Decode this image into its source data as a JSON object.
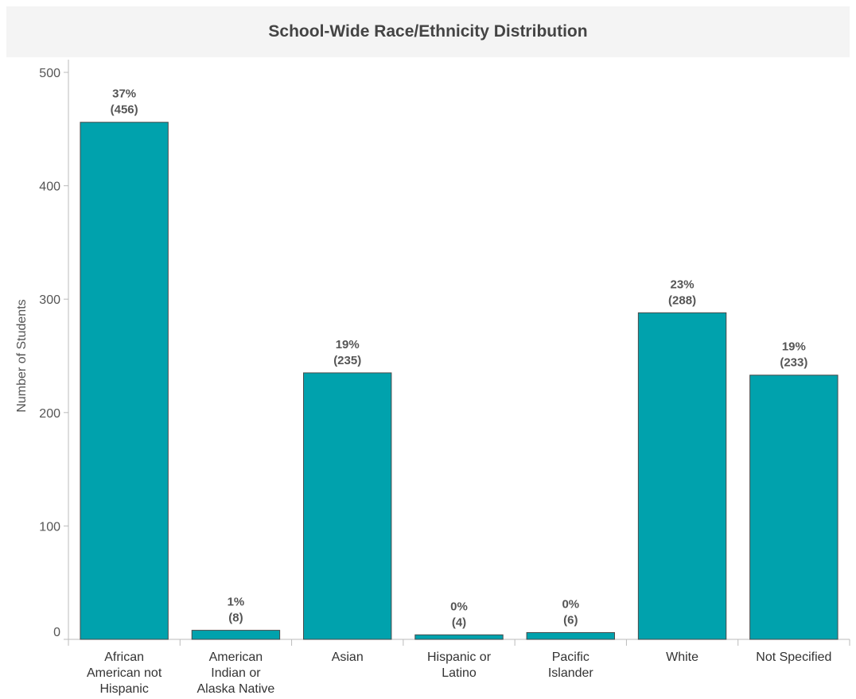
{
  "chart_data": {
    "type": "bar",
    "title": "School-Wide Race/Ethnicity Distribution",
    "xlabel": "",
    "ylabel": "Number of Students",
    "ylim": [
      0,
      500
    ],
    "yticks": [
      0,
      100,
      200,
      300,
      400,
      500
    ],
    "grid": false,
    "color": "#00a2ad",
    "categories": [
      [
        "African",
        "American not",
        "Hispanic"
      ],
      [
        "American",
        "Indian or",
        "Alaska Native"
      ],
      [
        "Asian"
      ],
      [
        "Hispanic or",
        "Latino"
      ],
      [
        "Pacific",
        "Islander"
      ],
      [
        "White"
      ],
      [
        "Not Specified"
      ]
    ],
    "values": [
      456,
      8,
      235,
      4,
      6,
      288,
      233
    ],
    "percent_labels": [
      "37%",
      "1%",
      "19%",
      "0%",
      "0%",
      "23%",
      "19%"
    ],
    "count_labels": [
      "(456)",
      "(8)",
      "(235)",
      "(4)",
      "(6)",
      "(288)",
      "(233)"
    ]
  }
}
